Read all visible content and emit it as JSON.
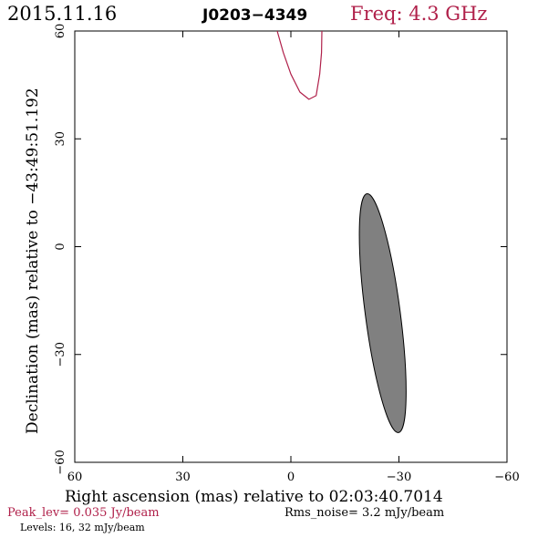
{
  "header": {
    "date": "2015.11.16",
    "source": "J0203−4349",
    "frequency": "Freq: 4.3 GHz"
  },
  "footer": {
    "peak_level": "Peak_lev=  0.035 Jy/beam",
    "rms_noise": "Rms_noise=   3.2 mJy/beam",
    "levels": "Levels:  16,  32 mJy/beam"
  },
  "colors": {
    "accent": "#b0204a",
    "axis": "#000000",
    "beam_fill": "#808080"
  },
  "chart_data": {
    "type": "contour",
    "title": "J0203−4349",
    "xlabel": "Right ascension (mas) relative to 02:03:40.7014",
    "ylabel": "Declination (mas) relative to −43:49:51.192",
    "xlim": [
      60,
      -60
    ],
    "ylim": [
      -60,
      60
    ],
    "x_ticks": [
      "60",
      "30",
      "0",
      "−30",
      "−60"
    ],
    "y_ticks": [
      "−60",
      "−30",
      "0",
      "30",
      "60"
    ],
    "x_tick_values": [
      60,
      30,
      0,
      -30,
      -60
    ],
    "y_tick_values": [
      -60,
      30,
      0,
      30,
      60
    ],
    "contour": {
      "name": "16 mJy/beam contour",
      "points": [
        [
          3.8,
          60
        ],
        [
          2.1,
          54
        ],
        [
          0,
          48
        ],
        [
          -2.5,
          43
        ],
        [
          -5.0,
          41
        ],
        [
          -7.0,
          42
        ],
        [
          -8.0,
          48
        ],
        [
          -8.5,
          54
        ],
        [
          -8.6,
          60
        ]
      ]
    },
    "beam": {
      "center": [
        -25.5,
        -18.5
      ],
      "major_axis_mas": 67,
      "minor_axis_mas": 9.7,
      "position_angle_deg": 7.5
    }
  }
}
